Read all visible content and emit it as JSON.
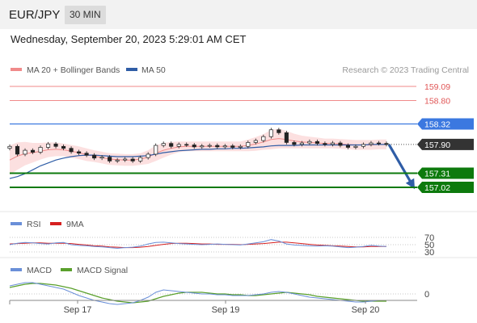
{
  "header": {
    "pair": "EUR/JPY",
    "timeframe": "30 MIN",
    "datetime": "Wednesday, September 20, 2023 5:29:01 AM CET"
  },
  "legend": {
    "main": [
      {
        "label": "MA 20 + Bollinger Bands",
        "color": "#f08a8a"
      },
      {
        "label": "MA 50",
        "color": "#2f5da6"
      }
    ],
    "rsi": [
      {
        "label": "RSI",
        "color": "#6a8fd8"
      },
      {
        "label": "9MA",
        "color": "#d62020"
      }
    ],
    "macd": [
      {
        "label": "MACD",
        "color": "#6a8fd8"
      },
      {
        "label": "MACD Signal",
        "color": "#5aa02c"
      }
    ],
    "research": "Research © 2023 Trading Central"
  },
  "levels": [
    {
      "value": 159.09,
      "label": "159.09",
      "kind": "resistance-text",
      "color": "#e05555"
    },
    {
      "value": 158.8,
      "label": "158.80",
      "kind": "resistance-text",
      "color": "#e05555"
    },
    {
      "value": 158.32,
      "label": "158.32",
      "kind": "pivot-badge",
      "color": "#3b78e0"
    },
    {
      "value": 157.9,
      "label": "157.90",
      "kind": "last-badge",
      "color": "#333333"
    },
    {
      "value": 157.31,
      "label": "157.31",
      "kind": "support-badge",
      "color": "#0d7a0d"
    },
    {
      "value": 157.02,
      "label": "157.02",
      "kind": "support-badge",
      "color": "#0d7a0d"
    }
  ],
  "rsi_levels": [
    "70",
    "50",
    "30"
  ],
  "macd_levels": [
    "0"
  ],
  "x_labels": [
    "Sep 17",
    "Sep 19",
    "Sep 20"
  ],
  "chart_data": {
    "type": "line",
    "price_scale": {
      "top": 159.09,
      "bottom": 157.02
    },
    "close": [
      157.86,
      157.7,
      157.78,
      157.74,
      157.84,
      157.91,
      157.86,
      157.82,
      157.75,
      157.72,
      157.68,
      157.62,
      157.64,
      157.56,
      157.58,
      157.6,
      157.56,
      157.63,
      157.7,
      157.88,
      157.92,
      157.86,
      157.9,
      157.89,
      157.85,
      157.87,
      157.88,
      157.85,
      157.87,
      157.84,
      157.86,
      157.94,
      157.98,
      158.06,
      158.2,
      158.14,
      157.94,
      157.9,
      157.93,
      157.96,
      157.92,
      157.9,
      157.93,
      157.88,
      157.84,
      157.86,
      157.9,
      157.93,
      157.92,
      157.9
    ],
    "ma20": [
      157.58,
      157.66,
      157.71,
      157.73,
      157.76,
      157.79,
      157.8,
      157.79,
      157.76,
      157.73,
      157.69,
      157.66,
      157.63,
      157.6,
      157.59,
      157.58,
      157.58,
      157.6,
      157.64,
      157.72,
      157.78,
      157.82,
      157.85,
      157.86,
      157.86,
      157.86,
      157.86,
      157.86,
      157.86,
      157.86,
      157.86,
      157.88,
      157.91,
      157.95,
      158.0,
      158.02,
      158.0,
      157.97,
      157.95,
      157.94,
      157.93,
      157.92,
      157.92,
      157.91,
      157.9,
      157.89,
      157.89,
      157.89,
      157.9,
      157.9
    ],
    "ma50": [
      157.2,
      157.24,
      157.3,
      157.38,
      157.46,
      157.52,
      157.58,
      157.62,
      157.65,
      157.67,
      157.68,
      157.68,
      157.67,
      157.66,
      157.65,
      157.65,
      157.65,
      157.66,
      157.67,
      157.7,
      157.73,
      157.75,
      157.77,
      157.78,
      157.79,
      157.8,
      157.8,
      157.81,
      157.81,
      157.82,
      157.82,
      157.83,
      157.84,
      157.85,
      157.87,
      157.88,
      157.88,
      157.88,
      157.89,
      157.89,
      157.89,
      157.89,
      157.89,
      157.89,
      157.89,
      157.89,
      157.89,
      157.9,
      157.9,
      157.9
    ],
    "bb_width": [
      0.3,
      0.28,
      0.24,
      0.2,
      0.17,
      0.15,
      0.14,
      0.13,
      0.13,
      0.13,
      0.13,
      0.12,
      0.12,
      0.12,
      0.12,
      0.12,
      0.12,
      0.12,
      0.14,
      0.16,
      0.15,
      0.13,
      0.11,
      0.1,
      0.1,
      0.1,
      0.1,
      0.1,
      0.1,
      0.1,
      0.1,
      0.12,
      0.14,
      0.16,
      0.2,
      0.2,
      0.18,
      0.15,
      0.13,
      0.12,
      0.11,
      0.1,
      0.1,
      0.1,
      0.1,
      0.1,
      0.1,
      0.1,
      0.1,
      0.1
    ],
    "rsi": [
      50,
      54,
      56,
      55,
      53,
      52,
      55,
      56,
      50,
      48,
      47,
      45,
      44,
      42,
      40,
      42,
      43,
      46,
      52,
      56,
      57,
      55,
      53,
      52,
      51,
      50,
      51,
      52,
      51,
      50,
      49,
      52,
      55,
      58,
      64,
      60,
      52,
      49,
      48,
      47,
      46,
      47,
      46,
      44,
      42,
      43,
      45,
      48,
      46,
      45
    ],
    "rsi_ma": [
      52,
      53,
      54,
      55,
      55,
      54,
      54,
      54,
      53,
      51,
      49,
      47,
      46,
      44,
      43,
      42,
      42,
      43,
      45,
      48,
      51,
      53,
      54,
      54,
      53,
      52,
      52,
      51,
      51,
      51,
      50,
      51,
      52,
      53,
      55,
      57,
      57,
      55,
      53,
      51,
      49,
      48,
      47,
      46,
      45,
      44,
      44,
      45,
      45,
      45
    ],
    "macd": [
      0.1,
      0.12,
      0.14,
      0.14,
      0.12,
      0.1,
      0.08,
      0.06,
      0.02,
      -0.02,
      -0.05,
      -0.08,
      -0.1,
      -0.12,
      -0.13,
      -0.12,
      -0.11,
      -0.08,
      -0.04,
      0.02,
      0.05,
      0.04,
      0.03,
      0.02,
      0.01,
      0.0,
      0.0,
      -0.01,
      -0.01,
      -0.02,
      -0.02,
      -0.02,
      -0.01,
      0.0,
      0.02,
      0.03,
      0.02,
      0.0,
      -0.02,
      -0.04,
      -0.05,
      -0.06,
      -0.07,
      -0.08,
      -0.09,
      -0.1,
      -0.1,
      -0.09,
      -0.08,
      -0.08
    ],
    "macd_signal": [
      0.08,
      0.1,
      0.12,
      0.13,
      0.13,
      0.12,
      0.11,
      0.09,
      0.07,
      0.04,
      0.01,
      -0.02,
      -0.05,
      -0.07,
      -0.09,
      -0.1,
      -0.11,
      -0.1,
      -0.09,
      -0.06,
      -0.03,
      -0.01,
      0.01,
      0.02,
      0.02,
      0.02,
      0.01,
      0.0,
      0.0,
      -0.01,
      -0.01,
      -0.02,
      -0.02,
      -0.01,
      0.0,
      0.01,
      0.02,
      0.01,
      0.0,
      -0.01,
      -0.03,
      -0.04,
      -0.05,
      -0.06,
      -0.07,
      -0.08,
      -0.09,
      -0.09,
      -0.09,
      -0.09
    ],
    "forecast": {
      "from": 157.9,
      "to": 157.02
    },
    "xlabel": "",
    "ylabel": ""
  }
}
